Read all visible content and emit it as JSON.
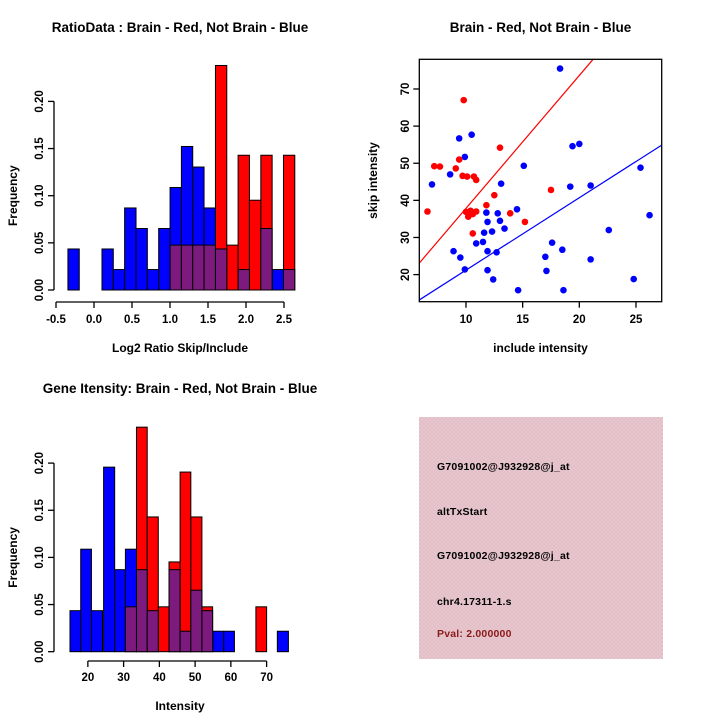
{
  "colors": {
    "blue": "#0000ff",
    "red": "#ff0000",
    "purple": "#7d1a7d",
    "black": "#000000",
    "panel_pink": "#f6bfca",
    "panel_gray": "#d2c6ca",
    "pval_red": "#8b1a1a"
  },
  "chart_data": [
    {
      "id": "ratio-histogram",
      "type": "bar",
      "title": "RatioData : Brain - Red, Not Brain - Blue",
      "xlabel": "Log2 Ratio Skip/Include",
      "ylabel": "Frequency",
      "xlim": [
        -0.5,
        2.75
      ],
      "ylim": [
        0,
        0.242
      ],
      "grid": false,
      "xticks": [
        {
          "v": -0.5,
          "label": "-0.5"
        },
        {
          "v": 0.0,
          "label": "0.0"
        },
        {
          "v": 0.5,
          "label": "0.5"
        },
        {
          "v": 1.0,
          "label": "1.0"
        },
        {
          "v": 1.5,
          "label": "1.5"
        },
        {
          "v": 2.0,
          "label": "2.0"
        },
        {
          "v": 2.5,
          "label": "2.5"
        }
      ],
      "yticks": [
        {
          "v": 0.0,
          "label": "0.00"
        },
        {
          "v": 0.05,
          "label": "0.05"
        },
        {
          "v": 0.1,
          "label": "0.10"
        },
        {
          "v": 0.15,
          "label": "0.15"
        },
        {
          "v": 0.2,
          "label": "0.20"
        }
      ],
      "bars": [
        {
          "color": "blue",
          "x0": -0.343,
          "x1": -0.194,
          "h": 0.0435
        },
        {
          "color": "blue",
          "x0": 0.105,
          "x1": 0.254,
          "h": 0.0435
        },
        {
          "color": "blue",
          "x0": 0.254,
          "x1": 0.403,
          "h": 0.0217
        },
        {
          "color": "blue",
          "x0": 0.403,
          "x1": 0.553,
          "h": 0.087
        },
        {
          "color": "blue",
          "x0": 0.553,
          "x1": 0.702,
          "h": 0.0652
        },
        {
          "color": "blue",
          "x0": 0.702,
          "x1": 0.851,
          "h": 0.0217
        },
        {
          "color": "blue",
          "x0": 0.851,
          "x1": 1.001,
          "h": 0.0652
        },
        {
          "color": "blue",
          "x0": 1.001,
          "x1": 1.15,
          "h": 0.1087
        },
        {
          "color": "blue",
          "x0": 1.15,
          "x1": 1.299,
          "h": 0.1522
        },
        {
          "color": "blue",
          "x0": 1.299,
          "x1": 1.448,
          "h": 0.1304
        },
        {
          "color": "blue",
          "x0": 1.448,
          "x1": 1.598,
          "h": 0.087
        },
        {
          "color": "blue",
          "x0": 2.344,
          "x1": 2.493,
          "h": 0.0217
        },
        {
          "color": "red",
          "x0": 1.598,
          "x1": 1.747,
          "h": 0.2381
        },
        {
          "color": "red",
          "x0": 1.747,
          "x1": 1.896,
          "h": 0.0476
        },
        {
          "color": "red",
          "x0": 1.896,
          "x1": 2.045,
          "h": 0.1429
        },
        {
          "color": "red",
          "x0": 2.045,
          "x1": 2.195,
          "h": 0.0952
        },
        {
          "color": "red",
          "x0": 2.195,
          "x1": 2.344,
          "h": 0.1429
        },
        {
          "color": "red",
          "x0": 2.493,
          "x1": 2.642,
          "h": 0.1429
        },
        {
          "color": "purple",
          "x0": 1.001,
          "x1": 1.15,
          "h": 0.0476
        },
        {
          "color": "purple",
          "x0": 1.15,
          "x1": 1.299,
          "h": 0.0476
        },
        {
          "color": "purple",
          "x0": 1.299,
          "x1": 1.448,
          "h": 0.0476
        },
        {
          "color": "purple",
          "x0": 1.448,
          "x1": 1.598,
          "h": 0.0476
        },
        {
          "color": "purple",
          "x0": 1.598,
          "x1": 1.747,
          "h": 0.0435
        },
        {
          "color": "purple",
          "x0": 1.896,
          "x1": 2.045,
          "h": 0.0217
        },
        {
          "color": "purple",
          "x0": 2.195,
          "x1": 2.344,
          "h": 0.0652
        },
        {
          "color": "purple",
          "x0": 2.493,
          "x1": 2.642,
          "h": 0.0217
        }
      ]
    },
    {
      "id": "skip-include-scatter",
      "type": "scatter",
      "title": "Brain - Red, Not Brain - Blue",
      "xlabel": "include intensity",
      "ylabel": "skip intensity",
      "xlim": [
        5.88,
        27.27
      ],
      "ylim": [
        12.7,
        78.0
      ],
      "grid": false,
      "xticks": [
        {
          "v": 10,
          "label": "10"
        },
        {
          "v": 15,
          "label": "15"
        },
        {
          "v": 20,
          "label": "20"
        },
        {
          "v": 25,
          "label": "25"
        }
      ],
      "yticks": [
        {
          "v": 20,
          "label": "20"
        },
        {
          "v": 30,
          "label": "30"
        },
        {
          "v": 40,
          "label": "40"
        },
        {
          "v": 50,
          "label": "50"
        },
        {
          "v": 60,
          "label": "60"
        },
        {
          "v": 70,
          "label": "70"
        }
      ],
      "series": [
        {
          "name": "not-brain",
          "color": "blue",
          "points": [
            [
              18.3,
              75.5
            ],
            [
              9.4,
              56.7
            ],
            [
              10.5,
              57.7
            ],
            [
              9.9,
              51.7
            ],
            [
              8.6,
              47.0
            ],
            [
              7.0,
              44.3
            ],
            [
              13.1,
              44.5
            ],
            [
              15.1,
              49.3
            ],
            [
              19.4,
              54.6
            ],
            [
              20.0,
              55.2
            ],
            [
              25.4,
              48.8
            ],
            [
              19.2,
              43.7
            ],
            [
              21.0,
              44.0
            ],
            [
              26.2,
              36.0
            ],
            [
              22.6,
              32.0
            ],
            [
              14.5,
              37.6
            ],
            [
              11.8,
              36.7
            ],
            [
              12.8,
              36.5
            ],
            [
              11.9,
              34.2
            ],
            [
              13.0,
              34.5
            ],
            [
              13.4,
              32.4
            ],
            [
              11.6,
              31.3
            ],
            [
              12.3,
              31.6
            ],
            [
              10.9,
              28.4
            ],
            [
              11.5,
              28.8
            ],
            [
              11.9,
              26.3
            ],
            [
              12.7,
              26.0
            ],
            [
              8.9,
              26.3
            ],
            [
              9.5,
              24.6
            ],
            [
              9.9,
              21.4
            ],
            [
              11.9,
              21.2
            ],
            [
              12.4,
              18.7
            ],
            [
              14.6,
              15.8
            ],
            [
              17.0,
              24.8
            ],
            [
              17.6,
              28.6
            ],
            [
              18.5,
              26.7
            ],
            [
              17.1,
              21.0
            ],
            [
              21.0,
              24.1
            ],
            [
              24.8,
              18.8
            ],
            [
              18.6,
              15.8
            ]
          ]
        },
        {
          "name": "brain",
          "color": "red",
          "points": [
            [
              9.8,
              67.0
            ],
            [
              13.0,
              54.2
            ],
            [
              7.2,
              49.2
            ],
            [
              7.7,
              49.1
            ],
            [
              9.4,
              51.0
            ],
            [
              9.1,
              48.6
            ],
            [
              9.7,
              46.6
            ],
            [
              10.1,
              46.4
            ],
            [
              10.7,
              46.4
            ],
            [
              10.9,
              45.5
            ],
            [
              6.6,
              37.0
            ],
            [
              12.5,
              41.4
            ],
            [
              11.8,
              38.7
            ],
            [
              10.0,
              36.9
            ],
            [
              10.4,
              37.2
            ],
            [
              10.6,
              36.3
            ],
            [
              10.9,
              37.0
            ],
            [
              10.2,
              35.6
            ],
            [
              10.6,
              31.1
            ],
            [
              13.9,
              36.5
            ],
            [
              15.2,
              34.2
            ],
            [
              17.5,
              42.8
            ]
          ]
        }
      ],
      "lines": [
        {
          "color": "red",
          "slope": 3.58,
          "intercept": 2.05
        },
        {
          "color": "blue",
          "slope": 1.95,
          "intercept": 1.71
        }
      ]
    },
    {
      "id": "gene-intensity-histogram",
      "type": "bar",
      "title": "Gene Itensity: Brain - Red, Not Brain - Blue",
      "xlabel": "Intensity",
      "ylabel": "Frequency",
      "xlim": [
        14.5,
        77.5
      ],
      "ylim": [
        0,
        0.242
      ],
      "grid": false,
      "xticks": [
        {
          "v": 20,
          "label": "20"
        },
        {
          "v": 30,
          "label": "30"
        },
        {
          "v": 40,
          "label": "40"
        },
        {
          "v": 50,
          "label": "50"
        },
        {
          "v": 60,
          "label": "60"
        },
        {
          "v": 70,
          "label": "70"
        }
      ],
      "yticks": [
        {
          "v": 0.0,
          "label": "0.00"
        },
        {
          "v": 0.05,
          "label": "0.05"
        },
        {
          "v": 0.1,
          "label": "0.10"
        },
        {
          "v": 0.15,
          "label": "0.15"
        },
        {
          "v": 0.2,
          "label": "0.20"
        }
      ],
      "bars": [
        {
          "color": "blue",
          "x0": 15.0,
          "x1": 18.0,
          "h": 0.0435
        },
        {
          "color": "blue",
          "x0": 18.0,
          "x1": 21.0,
          "h": 0.1087
        },
        {
          "color": "blue",
          "x0": 21.0,
          "x1": 24.1,
          "h": 0.0435
        },
        {
          "color": "blue",
          "x0": 24.4,
          "x1": 27.5,
          "h": 0.1957
        },
        {
          "color": "blue",
          "x0": 27.5,
          "x1": 30.5,
          "h": 0.087
        },
        {
          "color": "blue",
          "x0": 30.5,
          "x1": 33.6,
          "h": 0.1087
        },
        {
          "color": "blue",
          "x0": 54.9,
          "x1": 58.0,
          "h": 0.0217
        },
        {
          "color": "blue",
          "x0": 58.0,
          "x1": 61.0,
          "h": 0.0217
        },
        {
          "color": "blue",
          "x0": 73.0,
          "x1": 76.1,
          "h": 0.0217
        },
        {
          "color": "red",
          "x0": 33.6,
          "x1": 36.6,
          "h": 0.2381
        },
        {
          "color": "red",
          "x0": 36.6,
          "x1": 39.7,
          "h": 0.1429
        },
        {
          "color": "red",
          "x0": 39.7,
          "x1": 42.7,
          "h": 0.0476
        },
        {
          "color": "red",
          "x0": 42.7,
          "x1": 45.8,
          "h": 0.0952
        },
        {
          "color": "red",
          "x0": 45.8,
          "x1": 48.8,
          "h": 0.1905
        },
        {
          "color": "red",
          "x0": 48.8,
          "x1": 51.9,
          "h": 0.1429
        },
        {
          "color": "red",
          "x0": 51.9,
          "x1": 54.9,
          "h": 0.0476
        },
        {
          "color": "red",
          "x0": 67.0,
          "x1": 70.0,
          "h": 0.0476
        },
        {
          "color": "purple",
          "x0": 30.5,
          "x1": 33.6,
          "h": 0.0476
        },
        {
          "color": "purple",
          "x0": 33.6,
          "x1": 36.6,
          "h": 0.087
        },
        {
          "color": "purple",
          "x0": 36.6,
          "x1": 39.7,
          "h": 0.0435
        },
        {
          "color": "purple",
          "x0": 42.7,
          "x1": 45.8,
          "h": 0.087
        },
        {
          "color": "purple",
          "x0": 45.8,
          "x1": 48.8,
          "h": 0.0217
        },
        {
          "color": "purple",
          "x0": 48.8,
          "x1": 51.9,
          "h": 0.0652
        },
        {
          "color": "purple",
          "x0": 51.9,
          "x1": 54.9,
          "h": 0.0435
        }
      ]
    },
    {
      "id": "info-panel",
      "type": "text",
      "lines": [
        "G7091002@J932928@j_at",
        "altTxStart",
        "G7091002@J932928@j_at",
        "chr4.17311-1.s",
        "Pval: 2.000000"
      ]
    }
  ]
}
